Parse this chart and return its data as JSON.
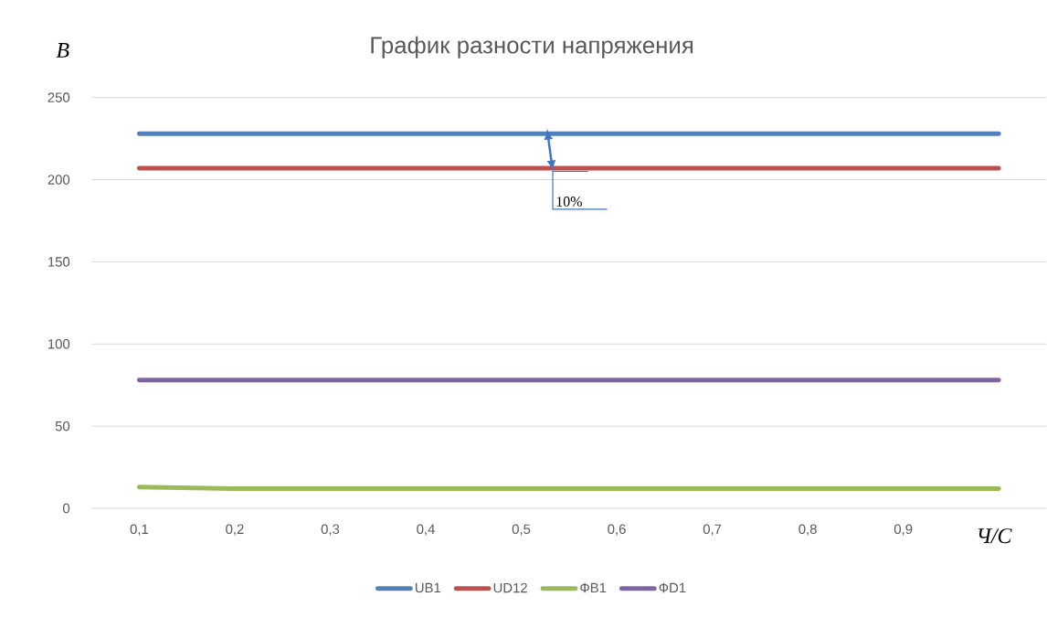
{
  "chart_data": {
    "type": "line",
    "title": "График разности напряжения",
    "xlabel": "Ч/С",
    "ylabel": "B",
    "categories": [
      "0,1",
      "0,2",
      "0,3",
      "0,4",
      "0,5",
      "0,6",
      "0,7",
      "0,8",
      "0,9",
      null
    ],
    "series": [
      {
        "name": "UB1",
        "color": "#4f81bd",
        "values": [
          228,
          228,
          228,
          228,
          228,
          228,
          228,
          228,
          228,
          228
        ]
      },
      {
        "name": "UD12",
        "color": "#c0504d",
        "values": [
          207,
          207,
          207,
          207,
          207,
          207,
          207,
          207,
          207,
          207
        ]
      },
      {
        "name": "ФB1",
        "color": "#9bbb59",
        "values": [
          13,
          12,
          12,
          12,
          12,
          12,
          12,
          12,
          12,
          12
        ]
      },
      {
        "name": "ФD1",
        "color": "#8064a2",
        "values": [
          78,
          78,
          78,
          78,
          78,
          78,
          78,
          78,
          78,
          78
        ]
      }
    ],
    "ylim": [
      0,
      250
    ],
    "yticks": [
      0,
      50,
      100,
      150,
      200,
      250
    ],
    "grid": "y",
    "legend": "bottom",
    "marker": "none",
    "line_style": "solid",
    "annotations": [
      "10%"
    ]
  }
}
